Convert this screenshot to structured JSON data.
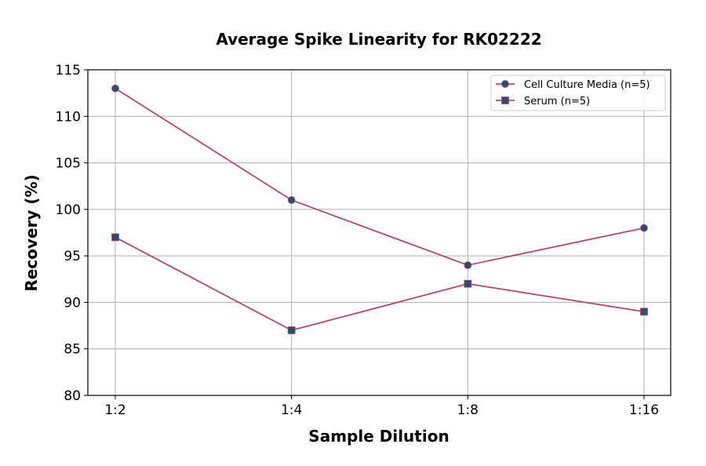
{
  "chart_data": {
    "type": "line",
    "title": "Average Spike Linearity for RK02222",
    "xlabel": "Sample Dilution",
    "ylabel": "Recovery (%)",
    "categories": [
      "1:2",
      "1:4",
      "1:8",
      "1:16"
    ],
    "ylim": [
      80,
      115
    ],
    "yticks": [
      80,
      85,
      90,
      95,
      100,
      105,
      110,
      115
    ],
    "grid": true,
    "legend_position": "top-right",
    "series": [
      {
        "name": "Cell Culture Media (n=5)",
        "values": [
          113,
          101,
          94,
          98
        ],
        "marker": "circle"
      },
      {
        "name": "Serum (n=5)",
        "values": [
          97,
          87,
          92,
          89
        ],
        "marker": "square"
      }
    ],
    "colors": {
      "line": "#b04a70",
      "marker": "#2e4d6e",
      "grid": "#b0b0b0"
    }
  }
}
